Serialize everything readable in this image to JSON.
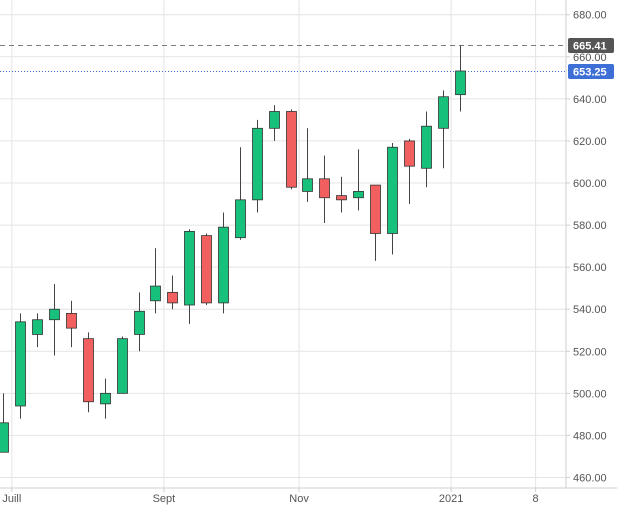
{
  "chart_data": {
    "type": "candlestick",
    "title": "",
    "xlabel": "",
    "ylabel": "",
    "ylim": [
      455,
      687
    ],
    "grid": true,
    "y_ticks": [
      "460.00",
      "480.00",
      "500.00",
      "520.00",
      "540.00",
      "560.00",
      "580.00",
      "600.00",
      "620.00",
      "640.00",
      "660.00",
      "680.00"
    ],
    "x_ticks": [
      {
        "label": "Juill",
        "index": 0.5
      },
      {
        "label": "Sept",
        "index": 9.5
      },
      {
        "label": "Nov",
        "index": 17.5
      },
      {
        "label": "2021",
        "index": 26.5
      },
      {
        "label": "8",
        "index": 31.5
      }
    ],
    "x_range": [
      -0.2,
      33.3
    ],
    "colors": {
      "up": "#17c17c",
      "down": "#f1605f",
      "wick": "#444444",
      "grid": "#e4e4e4",
      "axis_text": "#555555",
      "high_line": "#7a7a7a",
      "last_line": "#3d6fd6",
      "high_badge": "#555555",
      "last_badge": "#3d6fd6"
    },
    "candles": [
      {
        "o": 472,
        "h": 500,
        "l": 472,
        "c": 486
      },
      {
        "o": 494,
        "h": 538,
        "l": 488,
        "c": 534
      },
      {
        "o": 528,
        "h": 538,
        "l": 522,
        "c": 535
      },
      {
        "o": 535,
        "h": 552,
        "l": 518,
        "c": 540
      },
      {
        "o": 538,
        "h": 544,
        "l": 522,
        "c": 531
      },
      {
        "o": 526,
        "h": 529,
        "l": 491,
        "c": 496
      },
      {
        "o": 495,
        "h": 507,
        "l": 488,
        "c": 500
      },
      {
        "o": 500,
        "h": 527,
        "l": 500,
        "c": 526
      },
      {
        "o": 528,
        "h": 548,
        "l": 520,
        "c": 539
      },
      {
        "o": 544,
        "h": 569,
        "l": 538,
        "c": 551
      },
      {
        "o": 548,
        "h": 556,
        "l": 540,
        "c": 543
      },
      {
        "o": 542,
        "h": 578,
        "l": 533,
        "c": 577
      },
      {
        "o": 575,
        "h": 576,
        "l": 542,
        "c": 543
      },
      {
        "o": 543,
        "h": 586,
        "l": 538,
        "c": 579
      },
      {
        "o": 574,
        "h": 617,
        "l": 573,
        "c": 592
      },
      {
        "o": 592,
        "h": 630,
        "l": 586,
        "c": 626
      },
      {
        "o": 626,
        "h": 637,
        "l": 620,
        "c": 634
      },
      {
        "o": 634,
        "h": 635,
        "l": 597,
        "c": 598
      },
      {
        "o": 596,
        "h": 626,
        "l": 591,
        "c": 602
      },
      {
        "o": 602,
        "h": 613,
        "l": 581,
        "c": 593
      },
      {
        "o": 594,
        "h": 603,
        "l": 586,
        "c": 592
      },
      {
        "o": 593,
        "h": 616,
        "l": 587,
        "c": 596
      },
      {
        "o": 599,
        "h": 599,
        "l": 563,
        "c": 576
      },
      {
        "o": 576,
        "h": 619,
        "l": 566,
        "c": 617
      },
      {
        "o": 620,
        "h": 621,
        "l": 590,
        "c": 608
      },
      {
        "o": 607,
        "h": 634,
        "l": 598,
        "c": 627
      },
      {
        "o": 626,
        "h": 644,
        "l": 607,
        "c": 641
      },
      {
        "o": 642,
        "h": 665.41,
        "l": 634,
        "c": 653.25
      }
    ],
    "reference_lines": [
      {
        "name": "high",
        "value": 665.41,
        "label": "665.41",
        "style": "dashed"
      },
      {
        "name": "last",
        "value": 653.25,
        "label": "653.25",
        "style": "dotted"
      }
    ]
  }
}
